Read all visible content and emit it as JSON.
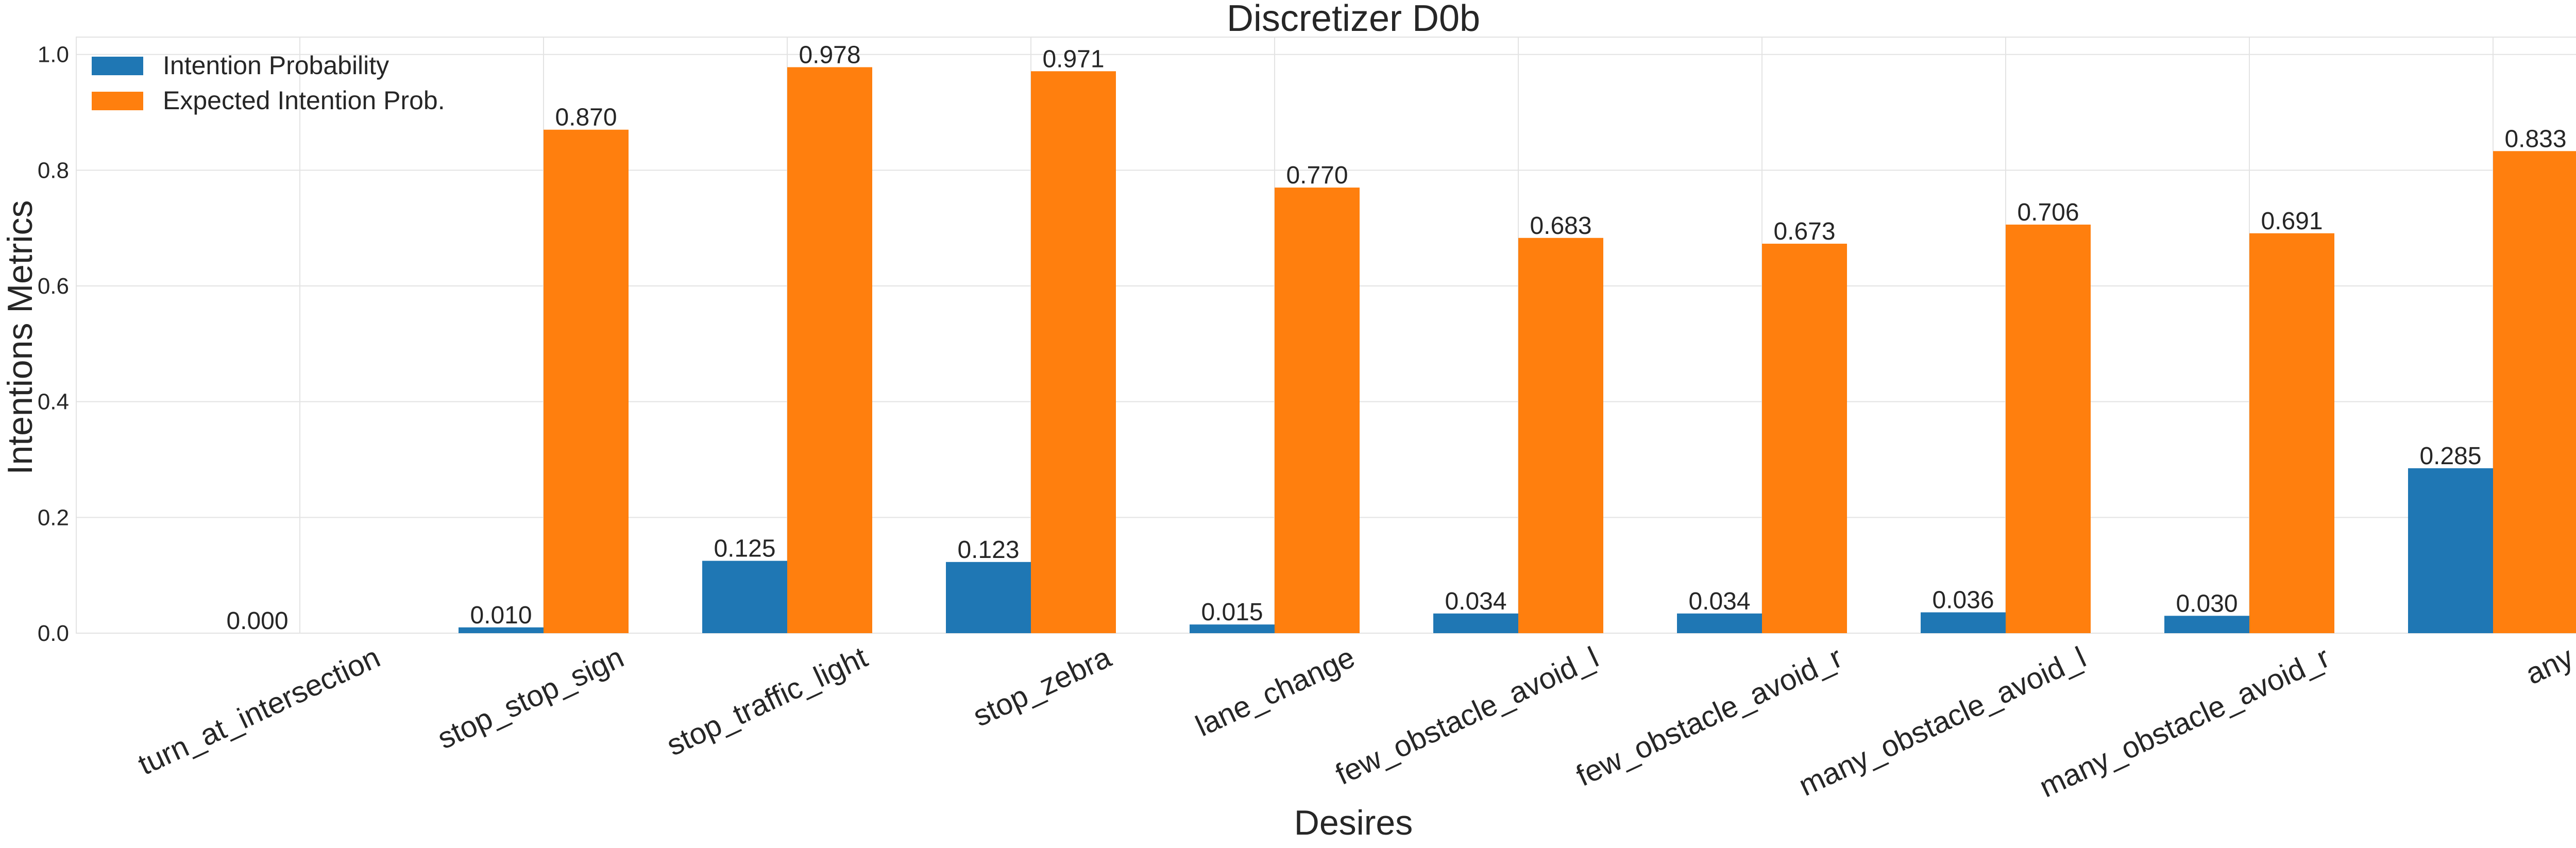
{
  "chart_data": {
    "type": "bar",
    "title": "Discretizer D0b",
    "xlabel": "Desires",
    "ylabel": "Intentions Metrics",
    "ylim": [
      0,
      1.03
    ],
    "yticks": [
      "0.0",
      "0.2",
      "0.4",
      "0.6",
      "0.8",
      "1.0"
    ],
    "grid": true,
    "legend_position": "top-left",
    "categories": [
      "turn_at_intersection",
      "stop_stop_sign",
      "stop_traffic_light",
      "stop_zebra",
      "lane_change",
      "few_obstacle_avoid_l",
      "few_obstacle_avoid_r",
      "many_obstacle_avoid_l",
      "many_obstacle_avoid_r",
      "any"
    ],
    "series": [
      {
        "name": "Intention Probability",
        "color": "#1f77b4",
        "values": [
          0.0,
          0.01,
          0.125,
          0.123,
          0.015,
          0.034,
          0.034,
          0.036,
          0.03,
          0.285
        ],
        "labels": [
          "0.000",
          "0.010",
          "0.125",
          "0.123",
          "0.015",
          "0.034",
          "0.034",
          "0.036",
          "0.030",
          "0.285"
        ]
      },
      {
        "name": "Expected Intention Prob.",
        "color": "#ff7f0e",
        "values": [
          null,
          0.87,
          0.978,
          0.971,
          0.77,
          0.683,
          0.673,
          0.706,
          0.691,
          0.833
        ],
        "labels": [
          "",
          "0.870",
          "0.978",
          "0.971",
          "0.770",
          "0.683",
          "0.673",
          "0.706",
          "0.691",
          "0.833"
        ]
      }
    ]
  }
}
